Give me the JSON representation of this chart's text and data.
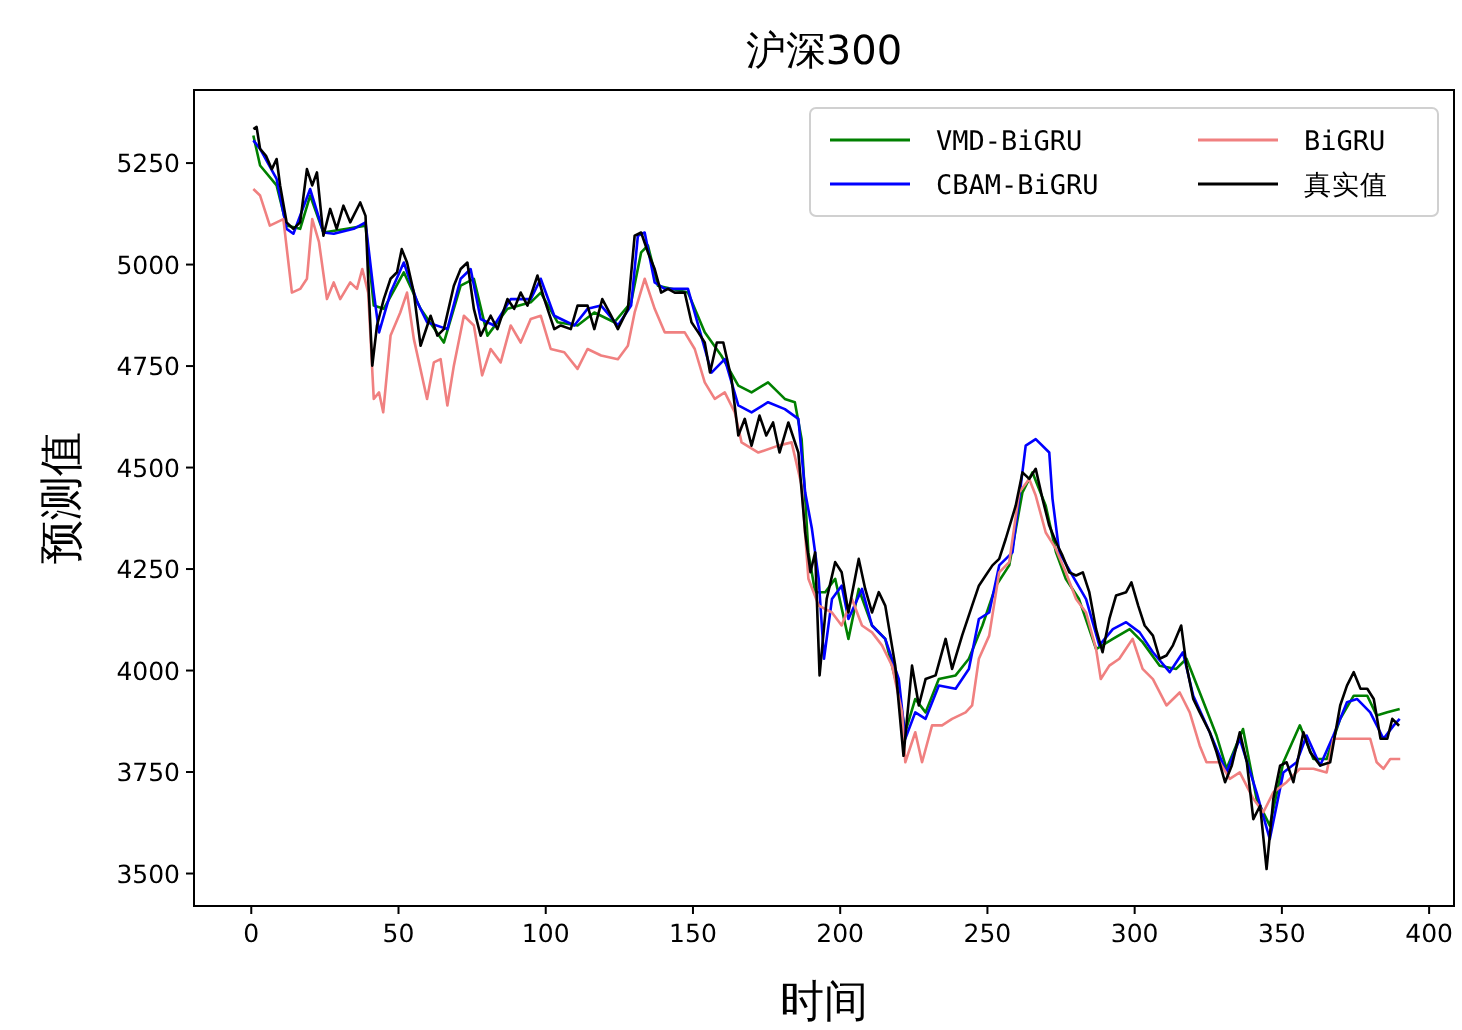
{
  "chart_data": {
    "type": "line",
    "title": "沪深300",
    "xlabel": "时间",
    "ylabel": "预测值",
    "xlim": [
      -19.45,
      408.45
    ],
    "ylim": [
      3420,
      5430
    ],
    "xticks": [
      0,
      50,
      100,
      150,
      200,
      250,
      300,
      350,
      400
    ],
    "yticks": [
      3500,
      3750,
      4000,
      4250,
      4500,
      4750,
      5000,
      5250
    ],
    "legend": "top right",
    "series": [
      {
        "name": "VMD-BiGRU",
        "color": "#008000",
        "x": [
          0.7,
          3,
          8.6,
          12,
          16.6,
          20,
          24.5,
          32.5,
          38.8,
          41.6,
          45,
          51.8,
          57.5,
          65.4,
          71.1,
          75.6,
          80.2,
          87,
          94.9,
          98.3,
          104,
          110.8,
          116.5,
          123.3,
          129,
          132.4,
          134.7,
          138.1,
          148.3,
          154,
          159.6,
          165.4,
          169.9,
          175.5,
          181.2,
          184.6,
          186.9,
          189.2,
          191.5,
          194.9,
          198.3,
          202.8,
          206.3,
          210.8,
          215.3,
          219.9,
          222.1,
          225.5,
          229,
          233.5,
          239.2,
          243.7,
          248.3,
          252.9,
          257.4,
          261.9,
          265.3,
          269.8,
          273.3,
          276.6,
          281.1,
          286.9,
          292.6,
          298.3,
          302.7,
          308.5,
          314.1,
          317.6,
          322.1,
          327.8,
          331.2,
          336.8,
          341.4,
          345.9,
          350.5,
          356.1,
          360.7,
          365.2,
          369.8,
          374.4,
          379,
          382.2,
          385.8,
          390
        ],
        "values": [
          5318,
          5244,
          5195,
          5096,
          5088,
          5170,
          5079,
          5088,
          5096,
          4899,
          4891,
          4981,
          4891,
          4808,
          4948,
          4965,
          4825,
          4891,
          4907,
          4931,
          4858,
          4850,
          4882,
          4858,
          4907,
          5030,
          5047,
          4948,
          4931,
          4833,
          4776,
          4702,
          4685,
          4710,
          4669,
          4661,
          4570,
          4291,
          4193,
          4193,
          4226,
          4078,
          4201,
          4111,
          4078,
          3946,
          3848,
          3930,
          3897,
          3979,
          3988,
          4029,
          4111,
          4209,
          4259,
          4439,
          4488,
          4406,
          4291,
          4226,
          4176,
          4053,
          4078,
          4102,
          4070,
          4012,
          4004,
          4029,
          3946,
          3840,
          3758,
          3856,
          3684,
          3618,
          3774,
          3865,
          3782,
          3782,
          3881,
          3938,
          3938,
          3889,
          3897,
          3905
        ]
      },
      {
        "name": "CBAM-BiGRU",
        "color": "#0000ff",
        "x": [
          0.7,
          3,
          8.6,
          12,
          14.3,
          20,
          24.5,
          28,
          34.8,
          38.8,
          41.6,
          43.4,
          47.3,
          51.8,
          56.4,
          59.7,
          66.6,
          71.1,
          74.5,
          77.9,
          82.5,
          88.1,
          94.9,
          98.3,
          102.9,
          109.7,
          114.2,
          118.8,
          124.5,
          129,
          131.3,
          133.6,
          137,
          140.4,
          148.3,
          151.8,
          156.3,
          160.8,
          165.4,
          169.9,
          175.5,
          181.2,
          185.8,
          188.1,
          190.4,
          192.7,
          194.5,
          197.2,
          200.5,
          202.8,
          207.4,
          210.8,
          215.3,
          219.9,
          222.1,
          225.5,
          229,
          233.5,
          239.2,
          243.7,
          247.1,
          250.6,
          254,
          258.5,
          263,
          266.4,
          271,
          272.1,
          274.4,
          278.9,
          283.5,
          288,
          292.6,
          297.1,
          301.7,
          306.2,
          311.9,
          316.4,
          319.9,
          325.5,
          331.2,
          335.7,
          341.4,
          345.9,
          350.5,
          355,
          358.4,
          363,
          367.5,
          372.1,
          375.5,
          380,
          384.5,
          388,
          390
        ],
        "values": [
          5306,
          5285,
          5211,
          5088,
          5076,
          5186,
          5079,
          5076,
          5088,
          5104,
          4931,
          4833,
          4931,
          5005,
          4907,
          4858,
          4841,
          4965,
          4989,
          4866,
          4850,
          4915,
          4915,
          4965,
          4874,
          4850,
          4891,
          4899,
          4850,
          4899,
          5071,
          5079,
          4956,
          4940,
          4940,
          4850,
          4734,
          4767,
          4653,
          4636,
          4661,
          4644,
          4620,
          4439,
          4349,
          4226,
          4029,
          4176,
          4209,
          4127,
          4201,
          4111,
          4078,
          3979,
          3832,
          3897,
          3881,
          3963,
          3955,
          4004,
          4127,
          4143,
          4259,
          4291,
          4554,
          4570,
          4537,
          4423,
          4291,
          4234,
          4176,
          4062,
          4102,
          4119,
          4094,
          4045,
          3996,
          4045,
          3938,
          3848,
          3749,
          3832,
          3700,
          3585,
          3749,
          3774,
          3840,
          3766,
          3840,
          3922,
          3930,
          3897,
          3832,
          3865,
          3881
        ]
      },
      {
        "name": "BiGRU",
        "color": "#f08080",
        "x": [
          0.7,
          3,
          6.3,
          8.6,
          10.9,
          13.8,
          16.6,
          18.9,
          20.7,
          23,
          25.7,
          28,
          30.2,
          33.6,
          35.9,
          37.7,
          39.7,
          41.6,
          43.4,
          44.8,
          47.3,
          50.6,
          52.9,
          55.2,
          59.7,
          62,
          64.3,
          66.6,
          68.8,
          72.2,
          75.6,
          78.4,
          81.3,
          84.7,
          88.1,
          91.5,
          94.9,
          98.3,
          101.7,
          106.3,
          110.8,
          114.2,
          118.8,
          124.5,
          127.9,
          130.2,
          133.6,
          137,
          140.4,
          147.2,
          150.6,
          154,
          157.4,
          160.8,
          164.2,
          166.5,
          172.2,
          179,
          183.5,
          186.9,
          189.2,
          192.7,
          197.2,
          200.5,
          204,
          207.4,
          210.8,
          214.2,
          217.6,
          221,
          222.1,
          225.5,
          227.8,
          231.2,
          234.6,
          238,
          242.6,
          244.8,
          247.1,
          250.6,
          254,
          257.4,
          260.8,
          264.2,
          266.4,
          269.8,
          273.3,
          276.6,
          280.1,
          283.5,
          286.9,
          288.5,
          291.4,
          294.8,
          299.3,
          302.7,
          306.2,
          310.8,
          315.3,
          318.7,
          322.1,
          324.4,
          328.9,
          332.3,
          335.7,
          340.3,
          343.7,
          347.1,
          351.6,
          356.1,
          360.7,
          365.2,
          367.5,
          370.9,
          380,
          382.2,
          384.5,
          386.8,
          390.2
        ],
        "values": [
          5186,
          5170,
          5096,
          5104,
          5112,
          4931,
          4940,
          4965,
          5112,
          5055,
          4915,
          4956,
          4915,
          4956,
          4940,
          4989,
          4931,
          4669,
          4685,
          4636,
          4825,
          4882,
          4931,
          4817,
          4669,
          4759,
          4767,
          4653,
          4751,
          4874,
          4850,
          4727,
          4792,
          4759,
          4850,
          4808,
          4866,
          4874,
          4792,
          4784,
          4743,
          4792,
          4776,
          4767,
          4800,
          4882,
          4965,
          4891,
          4833,
          4833,
          4792,
          4710,
          4669,
          4685,
          4636,
          4562,
          4537,
          4554,
          4562,
          4456,
          4226,
          4160,
          4143,
          4111,
          4176,
          4111,
          4094,
          4062,
          4012,
          3897,
          3774,
          3848,
          3774,
          3865,
          3865,
          3881,
          3897,
          3914,
          4029,
          4086,
          4242,
          4267,
          4439,
          4472,
          4431,
          4340,
          4299,
          4242,
          4176,
          4143,
          4053,
          3979,
          4012,
          4029,
          4078,
          4004,
          3979,
          3914,
          3946,
          3897,
          3815,
          3774,
          3774,
          3733,
          3749,
          3684,
          3651,
          3700,
          3725,
          3758,
          3758,
          3749,
          3832,
          3832,
          3832,
          3774,
          3758,
          3782,
          3782
        ]
      },
      {
        "name": "真实值",
        "color": "#000000",
        "x": [
          0.7,
          1.8,
          3,
          5,
          7,
          8.6,
          9.8,
          12,
          14.3,
          16.6,
          18.9,
          20.7,
          22.3,
          24.5,
          26.8,
          29,
          31.3,
          33.6,
          37,
          38.8,
          39.7,
          41.1,
          42.7,
          45,
          47.3,
          49.5,
          51.1,
          52.9,
          55.2,
          57.5,
          60.9,
          63.2,
          65.4,
          68.8,
          71.1,
          73.4,
          75.6,
          77.9,
          81.3,
          83.6,
          87,
          89.3,
          91.5,
          93.8,
          97.2,
          99.5,
          102.9,
          105.1,
          108.5,
          110.8,
          114.2,
          116.5,
          119.2,
          122.2,
          124.5,
          127.9,
          130.2,
          132.4,
          134.7,
          137,
          139.2,
          141.5,
          143.8,
          147.2,
          149.5,
          151.8,
          154,
          155.8,
          158.1,
          160.3,
          163.1,
          165.4,
          167.6,
          169.9,
          172.6,
          174.9,
          177.2,
          179.4,
          182.4,
          185.8,
          188.1,
          189.9,
          191.5,
          193,
          195.4,
          198.3,
          200.5,
          202.8,
          206.3,
          208.5,
          210.8,
          213.1,
          215.3,
          218.7,
          221.5,
          224.4,
          226.7,
          229,
          232.4,
          235.8,
          238,
          241.4,
          244.8,
          247.1,
          249.4,
          251.7,
          254,
          256.2,
          259.6,
          261.9,
          264.2,
          266.4,
          268.7,
          271,
          273.3,
          275.5,
          277.8,
          280.1,
          282.4,
          284.6,
          286.9,
          289.1,
          291.4,
          293.7,
          297.1,
          298.9,
          301.2,
          303.4,
          306.2,
          308.5,
          310.8,
          313,
          315.8,
          317.6,
          319.9,
          322.1,
          325.5,
          327.8,
          330.7,
          333,
          335.7,
          338.1,
          340.3,
          342.6,
          344.8,
          347.1,
          349.4,
          351.6,
          353.9,
          357.3,
          359.6,
          363,
          366.4,
          369.8,
          372.1,
          374.4,
          376.7,
          379,
          381.2,
          383.5,
          385.8,
          387.5,
          389.8
        ],
        "values": [
          5334,
          5339,
          5285,
          5268,
          5235,
          5260,
          5195,
          5104,
          5088,
          5104,
          5235,
          5195,
          5227,
          5071,
          5137,
          5088,
          5145,
          5104,
          5153,
          5120,
          4965,
          4751,
          4850,
          4915,
          4965,
          4981,
          5038,
          5005,
          4931,
          4800,
          4874,
          4825,
          4841,
          4948,
          4989,
          5005,
          4891,
          4825,
          4874,
          4841,
          4915,
          4891,
          4931,
          4899,
          4973,
          4915,
          4841,
          4850,
          4841,
          4899,
          4899,
          4841,
          4915,
          4874,
          4841,
          4891,
          5071,
          5079,
          5030,
          4989,
          4931,
          4940,
          4931,
          4931,
          4858,
          4833,
          4808,
          4734,
          4808,
          4808,
          4718,
          4579,
          4620,
          4554,
          4628,
          4579,
          4611,
          4537,
          4611,
          4537,
          4340,
          4242,
          4291,
          3988,
          4176,
          4267,
          4242,
          4143,
          4275,
          4201,
          4143,
          4193,
          4160,
          4012,
          3790,
          4012,
          3914,
          3979,
          3988,
          4078,
          4004,
          4086,
          4160,
          4209,
          4234,
          4259,
          4275,
          4324,
          4406,
          4488,
          4472,
          4497,
          4423,
          4357,
          4316,
          4283,
          4242,
          4234,
          4242,
          4193,
          4102,
          4045,
          4127,
          4185,
          4193,
          4217,
          4160,
          4111,
          4086,
          4029,
          4037,
          4062,
          4111,
          4012,
          3930,
          3897,
          3848,
          3799,
          3725,
          3766,
          3848,
          3774,
          3634,
          3667,
          3511,
          3684,
          3766,
          3774,
          3725,
          3848,
          3799,
          3766,
          3774,
          3914,
          3963,
          3996,
          3955,
          3955,
          3930,
          3832,
          3832,
          3881,
          3864
        ]
      }
    ]
  }
}
